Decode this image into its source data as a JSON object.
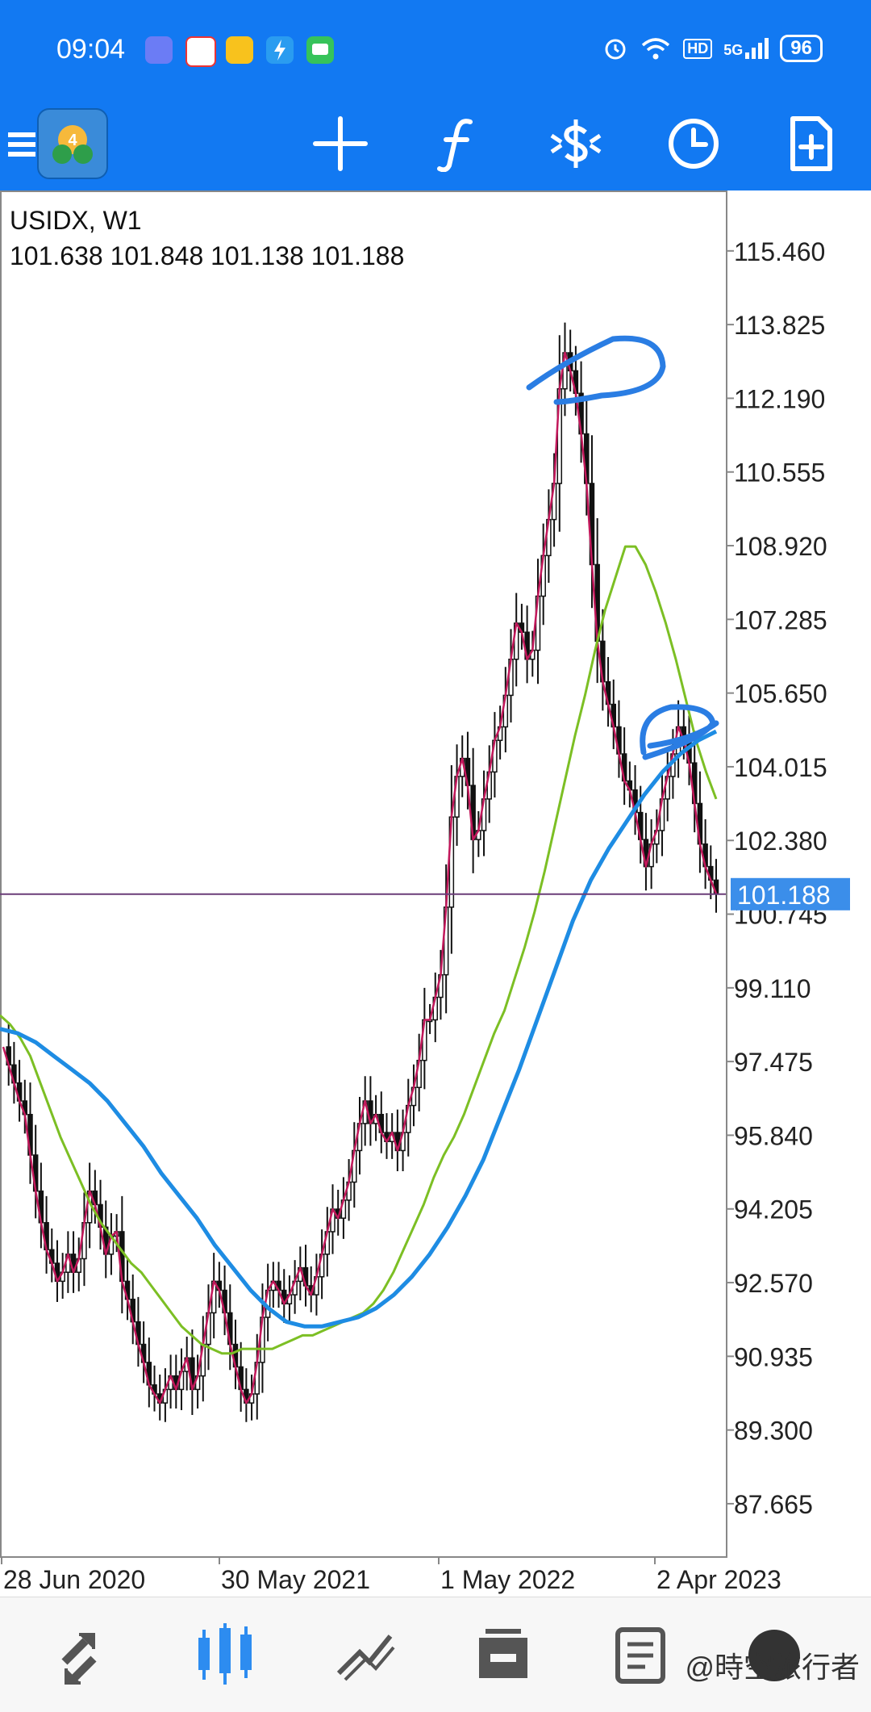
{
  "status_bar": {
    "time": "09:04",
    "notification_icons": [
      "bubble-app-icon",
      "calendar-app-icon",
      "weibo-app-icon",
      "bolt-app-icon",
      "message-app-icon"
    ],
    "right_icons": [
      "alarm-icon",
      "wifi-icon",
      "hd-icon",
      "signal-5g-icon"
    ],
    "hd_label": "HD",
    "net_label": "5G",
    "battery": "96"
  },
  "toolbar": {
    "icons": [
      "menu-icon",
      "mt4-logo",
      "crosshair-icon",
      "indicators-icon",
      "trade-icon",
      "timeframe-icon",
      "new-document-icon"
    ]
  },
  "chart": {
    "symbol": "USIDX, W1",
    "ohlc": "101.638 101.848 101.138 101.188",
    "current_price_label": "101.188",
    "colors": {
      "price_line": "#c2185b",
      "candles": "#111111",
      "ma_fast": "#7cbf24",
      "ma_slow": "#1e8ce3",
      "bid_line": "#6a3d78",
      "badge": "#3b8eea",
      "annotation": "#2a7de3"
    }
  },
  "chart_data": {
    "type": "line",
    "title": "USIDX, W1",
    "ylim": [
      86.5,
      116.8
    ],
    "y_ticks": [
      "115.460",
      "113.825",
      "112.190",
      "110.555",
      "108.920",
      "107.285",
      "105.650",
      "104.015",
      "102.380",
      "100.745",
      "99.110",
      "97.475",
      "95.840",
      "94.205",
      "92.570",
      "90.935",
      "89.300",
      "87.665"
    ],
    "x_ticks": [
      "28 Jun 2020",
      "30 May 2021",
      "1 May 2022",
      "2 Apr 2023"
    ],
    "current_price": 101.188,
    "grid": false,
    "series": [
      {
        "values": [
          97.8,
          97.4,
          97.0,
          96.6,
          96.3,
          95.4,
          94.6,
          93.9,
          93.3,
          93.0,
          92.6,
          92.8,
          93.2,
          92.8,
          93.1,
          93.9,
          94.6,
          94.3,
          93.8,
          93.2,
          93.6,
          93.7,
          92.6,
          92.2,
          91.7,
          91.2,
          90.8,
          90.3,
          90.1,
          89.9,
          90.2,
          90.5,
          90.2,
          90.6,
          90.9,
          90.2,
          90.5,
          91.2,
          91.9,
          92.6,
          92.4,
          91.9,
          91.2,
          90.7,
          90.2,
          89.9,
          90.1,
          90.8,
          91.8,
          92.4,
          92.6,
          92.4,
          92.1,
          92.3,
          92.6,
          92.9,
          92.5,
          92.3,
          92.7,
          93.2,
          93.7,
          94.2,
          94.0,
          94.4,
          94.8,
          95.5,
          96.1,
          96.6,
          96.1,
          96.3,
          95.9,
          95.7,
          95.9,
          95.5,
          95.9,
          96.5,
          96.9,
          97.5,
          98.4,
          98.4,
          98.9,
          99.4,
          100.9,
          102.9,
          103.8,
          104.2,
          103.6,
          102.4,
          102.6,
          103.3,
          103.9,
          104.6,
          104.9,
          105.6,
          106.4,
          107.2,
          107.0,
          106.4,
          106.6,
          107.8,
          108.7,
          109.5,
          110.3,
          112.4,
          113.2,
          112.8,
          112.3,
          111.4,
          110.3,
          108.5,
          106.8,
          105.9,
          105.4,
          104.9,
          104.3,
          103.7,
          103.5,
          103.0,
          102.4,
          101.8,
          102.3,
          102.6,
          103.3,
          103.8,
          104.3,
          104.9,
          104.6,
          104.1,
          103.2,
          102.3,
          101.8,
          101.5,
          101.2
        ]
      },
      {
        "values": [
          98.5,
          98.3,
          98.0,
          97.6,
          97.0,
          96.4,
          95.8,
          95.3,
          94.8,
          94.3,
          93.9,
          93.6,
          93.3,
          93.0,
          92.8,
          92.5,
          92.2,
          91.9,
          91.6,
          91.4,
          91.2,
          91.1,
          91.0,
          91.0,
          91.1,
          91.1,
          91.1,
          91.1,
          91.2,
          91.3,
          91.4,
          91.4,
          91.5,
          91.6,
          91.7,
          91.8,
          91.9,
          92.1,
          92.4,
          92.8,
          93.3,
          93.8,
          94.3,
          94.9,
          95.4,
          95.8,
          96.3,
          96.9,
          97.5,
          98.1,
          98.6,
          99.3,
          100.0,
          100.8,
          101.7,
          102.7,
          103.7,
          104.7,
          105.6,
          106.6,
          107.5,
          108.2,
          108.9,
          108.9,
          108.5,
          107.9,
          107.2,
          106.4,
          105.5,
          104.6,
          103.9,
          103.3
        ]
      },
      {
        "values": [
          98.2,
          98.1,
          97.9,
          97.6,
          97.3,
          97.0,
          96.6,
          96.1,
          95.6,
          95.0,
          94.5,
          94.0,
          93.4,
          92.9,
          92.4,
          92.0,
          91.7,
          91.6,
          91.6,
          91.7,
          91.8,
          92.0,
          92.3,
          92.7,
          93.2,
          93.8,
          94.5,
          95.3,
          96.3,
          97.3,
          98.4,
          99.5,
          100.6,
          101.5,
          102.2,
          102.8,
          103.4,
          103.9,
          104.3,
          104.6,
          104.8
        ]
      }
    ]
  },
  "annotations": {
    "type": "hand-drawn circles",
    "targets": [
      "peak",
      "lower-high"
    ]
  },
  "bottom_nav": {
    "icons": [
      "quotes-icon",
      "chart-icon",
      "trade-icon",
      "history-icon",
      "messages-icon"
    ]
  },
  "watermark": "@時空旅行者"
}
